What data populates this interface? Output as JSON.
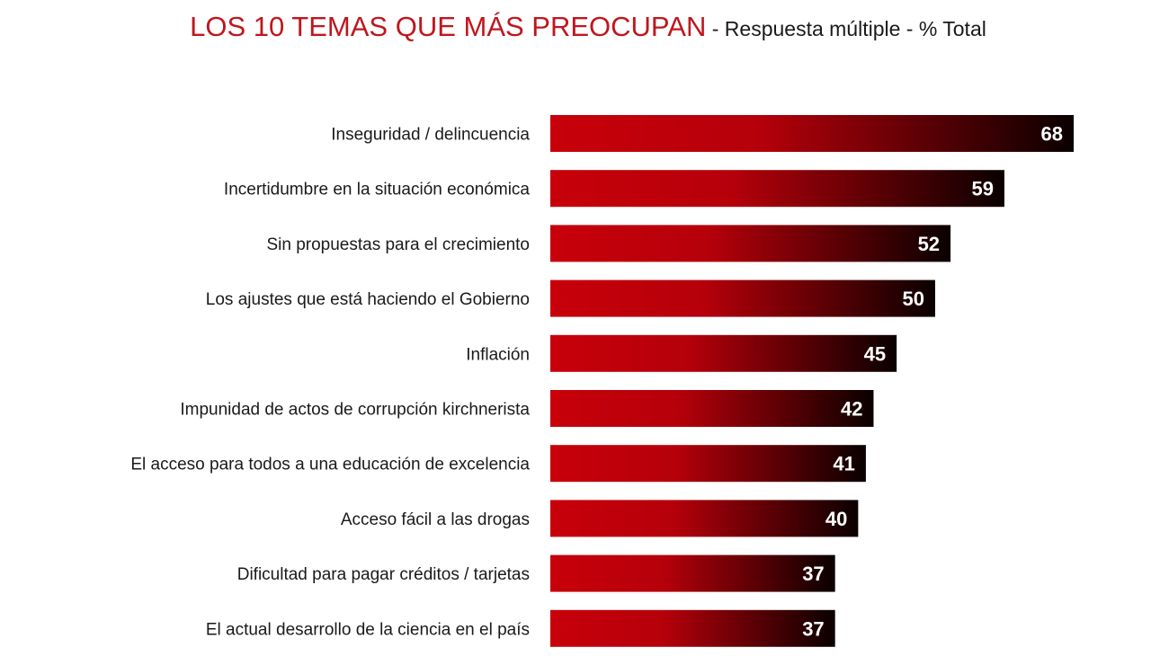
{
  "header": {
    "title": "LOS 10 TEMAS QUE MÁS PREOCUPAN",
    "subtitle": " - Respuesta múltiple - % Total"
  },
  "colors": {
    "bar_start": "#c8000a",
    "bar_end": "#0a0000",
    "title": "#c0161e"
  },
  "chart_data": {
    "type": "bar",
    "orientation": "horizontal",
    "title": "LOS 10 TEMAS QUE MÁS PREOCUPAN",
    "subtitle": "- Respuesta múltiple - % Total",
    "categories": [
      "Inseguridad / delincuencia",
      "Incertidumbre en la situación económica",
      "Sin propuestas para el crecimiento",
      "Los ajustes que está haciendo el Gobierno",
      "Inflación",
      "Impunidad de actos de corrupción kirchnerista",
      "El acceso para todos a una educación de excelencia",
      "Acceso fácil a las drogas",
      "Dificultad para pagar créditos / tarjetas",
      "El actual desarrollo de la ciencia en el país"
    ],
    "values": [
      68,
      59,
      52,
      50,
      45,
      42,
      41,
      40,
      37,
      37
    ],
    "xlabel": "",
    "ylabel": "",
    "xlim": [
      0,
      68
    ],
    "grid": false,
    "legend": "none"
  }
}
